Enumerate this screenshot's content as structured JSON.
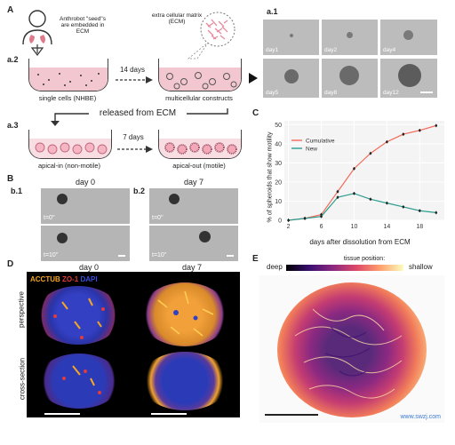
{
  "figure": {
    "panel_labels": {
      "A": "A",
      "a1": "a.1",
      "a2": "a.2",
      "a3": "a.3",
      "B": "B",
      "b1": "b.1",
      "b2": "b.2",
      "C": "C",
      "D": "D",
      "E": "E"
    },
    "schematic": {
      "seed_text": "Anthrobot \"seed\"s are embedded in ECM",
      "ecm_text": "extra cellular matrix (ECM)",
      "arrow_14": "14 days",
      "dish1_caption": "single cells (NHBE)",
      "dish2_caption": "multicellular constructs",
      "released": "released from ECM",
      "arrow_7": "7 days",
      "dish3_caption": "apical-in (non-motile)",
      "dish4_caption": "apical-out (motile)"
    },
    "a1_days": [
      "day1",
      "day2",
      "day4",
      "day5",
      "day8",
      "day12"
    ],
    "panel_b": {
      "b1_title": "day 0",
      "b2_title": "day 7",
      "t0": "t=0''",
      "t10": "t=10''"
    },
    "panel_d": {
      "stain_acctub": "ACCTUB",
      "stain_zo1": "ZO-1",
      "stain_dapi": "DAPI",
      "day0": "day 0",
      "day7": "day 7",
      "row_perspective": "perspective",
      "row_cross": "cross-section"
    },
    "panel_e": {
      "deep": "deep",
      "title": "tissue position:",
      "shallow": "shallow"
    },
    "watermark": "www.swzj.com",
    "colors": {
      "cumulative": "#f26b5b",
      "new": "#2a9d8f",
      "acctub": "#f5a623",
      "zo1": "#e23b3b",
      "dapi": "#2b3bb8"
    }
  },
  "chart_data": {
    "type": "line",
    "xlabel": "days after dissolution from ECM",
    "ylabel": "% of spheroids that show motility",
    "x_ticks": [
      2,
      6,
      10,
      14,
      18
    ],
    "y_ticks": [
      0,
      10,
      20,
      30,
      40,
      50
    ],
    "xlim": [
      1.5,
      21
    ],
    "ylim": [
      0,
      52
    ],
    "legend_placement": "top-left",
    "grid": true,
    "series": [
      {
        "name": "Cumulative",
        "color": "#f26b5b",
        "x": [
          2,
          4,
          6,
          8,
          10,
          12,
          14,
          16,
          18,
          20
        ],
        "y": [
          0,
          1,
          3,
          15,
          27,
          35,
          41,
          45,
          47,
          49.5
        ]
      },
      {
        "name": "New",
        "color": "#2a9d8f",
        "x": [
          2,
          4,
          6,
          8,
          10,
          12,
          14,
          16,
          18,
          20
        ],
        "y": [
          0,
          1,
          2,
          12,
          14,
          11,
          9,
          7,
          5,
          4
        ]
      }
    ]
  }
}
